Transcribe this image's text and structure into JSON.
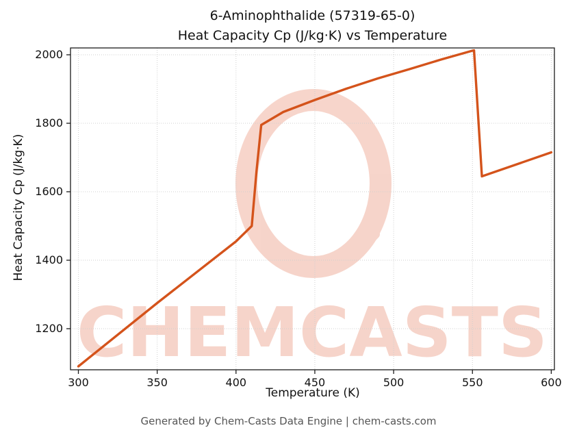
{
  "title": {
    "line1": "6-Aminophthalide (57319-65-0)",
    "line2": "Heat Capacity Cp (J/kg·K) vs Temperature"
  },
  "chart_data": {
    "type": "line",
    "title": "6-Aminophthalide (57319-65-0) Heat Capacity Cp (J/kg·K) vs Temperature",
    "xlabel": "Temperature (K)",
    "ylabel": "Heat Capacity Cp (J/kg·K)",
    "xlim": [
      295,
      602
    ],
    "ylim": [
      1080,
      2020
    ],
    "xticks": [
      300,
      350,
      400,
      450,
      500,
      550,
      600
    ],
    "yticks": [
      1200,
      1400,
      1600,
      1800,
      2000
    ],
    "grid": true,
    "legend": "none",
    "line_color": "#d4531b",
    "series": [
      {
        "name": "Heat Capacity Cp",
        "points": [
          [
            300,
            1090
          ],
          [
            350,
            1275
          ],
          [
            400,
            1455
          ],
          [
            410,
            1500
          ],
          [
            413,
            1660
          ],
          [
            416,
            1795
          ],
          [
            430,
            1833
          ],
          [
            450,
            1868
          ],
          [
            470,
            1901
          ],
          [
            490,
            1931
          ],
          [
            510,
            1958
          ],
          [
            530,
            1986
          ],
          [
            550,
            2012
          ],
          [
            551,
            2013
          ],
          [
            556,
            1645
          ],
          [
            600,
            1715
          ]
        ]
      }
    ]
  },
  "watermark": {
    "text": "CHEMCASTS",
    "color": "#eda28b",
    "logo": "brush-circle-logo"
  },
  "axis": {
    "spine_color": "#1a1a1a",
    "grid_color": "#cfcfcf",
    "tick_label_color": "#111111"
  },
  "footer": {
    "text": "Generated by Chem-Casts Data Engine | chem-casts.com"
  }
}
